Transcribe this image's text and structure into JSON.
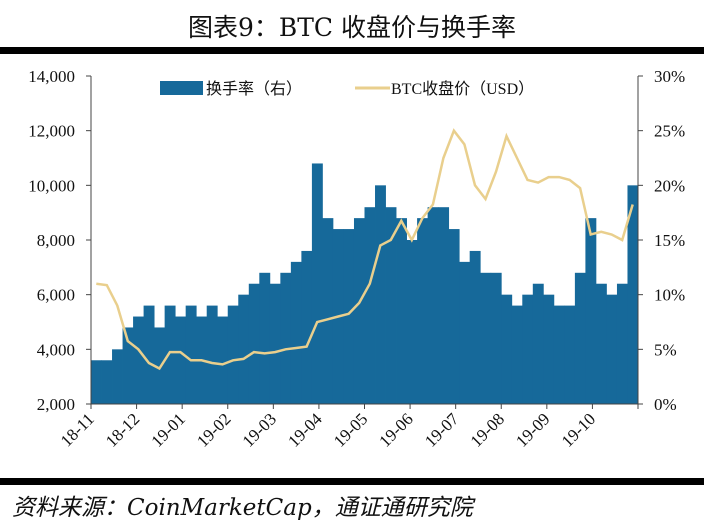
{
  "title": "图表9：BTC 收盘价与换手率",
  "source": "资料来源：CoinMarketCap，通证通研究院",
  "colors": {
    "bar": "#16699a",
    "line": "#e9cf8d"
  },
  "chart_data": {
    "type": "bar+line",
    "legend": [
      "换手率（右）",
      "BTC收盘价（USD）"
    ],
    "legend_placement": "top",
    "x_tick_labels": [
      "18-11",
      "18-12",
      "19-01",
      "19-02",
      "19-03",
      "19-04",
      "19-05",
      "19-06",
      "19-07",
      "19-08",
      "19-09",
      "19-10"
    ],
    "left_axis": {
      "range": [
        2000,
        14000
      ],
      "ticks": [
        "2,000",
        "4,000",
        "6,000",
        "8,000",
        "10,000",
        "12,000",
        "14,000"
      ],
      "tick_values": [
        2000,
        4000,
        6000,
        8000,
        10000,
        12000,
        14000
      ]
    },
    "right_axis": {
      "range": [
        0,
        30
      ],
      "ticks": [
        "0%",
        "5%",
        "10%",
        "15%",
        "20%",
        "25%",
        "30%"
      ],
      "tick_values": [
        0,
        5,
        10,
        15,
        20,
        25,
        30
      ]
    },
    "x_frequency": "weekly, 2018-11 to 2019-10",
    "series": [
      {
        "name": "换手率（右）",
        "type": "bar",
        "axis": "right",
        "unit": "%",
        "values": [
          4,
          4,
          5,
          7,
          8,
          9,
          7,
          9,
          8,
          9,
          8,
          9,
          8,
          9,
          10,
          11,
          12,
          11,
          12,
          13,
          14,
          22,
          17,
          16,
          16,
          17,
          18,
          20,
          18,
          17,
          15,
          17,
          18,
          18,
          16,
          13,
          14,
          12,
          12,
          10,
          9,
          10,
          11,
          10,
          9,
          9,
          12,
          17,
          11,
          10,
          11,
          20
        ]
      },
      {
        "name": "BTC收盘价（USD）",
        "type": "line",
        "axis": "left",
        "unit": "USD",
        "values": [
          6400,
          6350,
          5600,
          4300,
          4000,
          3500,
          3300,
          3900,
          3900,
          3600,
          3600,
          3500,
          3450,
          3600,
          3650,
          3900,
          3850,
          3900,
          4000,
          4050,
          4100,
          5000,
          5100,
          5200,
          5300,
          5700,
          6400,
          7800,
          8000,
          8700,
          8000,
          8800,
          9300,
          11000,
          12000,
          11500,
          10000,
          9500,
          10500,
          11800,
          11000,
          10200,
          10100,
          10300,
          10300,
          10200,
          9900,
          8200,
          8300,
          8200,
          8000,
          9300
        ]
      }
    ]
  }
}
